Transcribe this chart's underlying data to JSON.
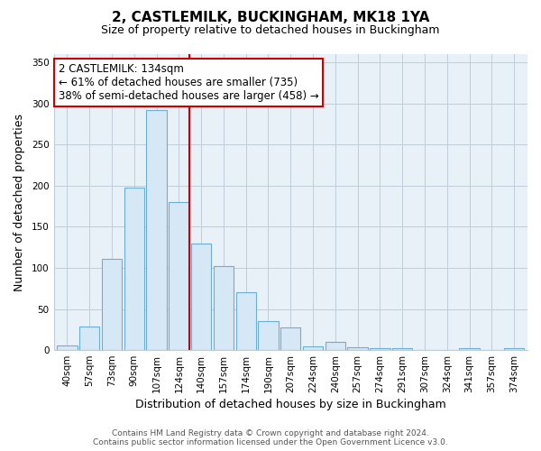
{
  "title": "2, CASTLEMILK, BUCKINGHAM, MK18 1YA",
  "subtitle": "Size of property relative to detached houses in Buckingham",
  "xlabel": "Distribution of detached houses by size in Buckingham",
  "ylabel": "Number of detached properties",
  "bar_labels": [
    "40sqm",
    "57sqm",
    "73sqm",
    "90sqm",
    "107sqm",
    "124sqm",
    "140sqm",
    "157sqm",
    "174sqm",
    "190sqm",
    "207sqm",
    "224sqm",
    "240sqm",
    "257sqm",
    "274sqm",
    "291sqm",
    "307sqm",
    "324sqm",
    "341sqm",
    "357sqm",
    "374sqm"
  ],
  "bar_values": [
    6,
    29,
    111,
    198,
    292,
    180,
    130,
    102,
    70,
    35,
    27,
    5,
    10,
    3,
    2,
    2,
    0,
    0,
    2,
    0,
    2
  ],
  "bar_color": "#d6e8f5",
  "bar_edge_color": "#6baed6",
  "vline_color": "#cc0000",
  "ylim": [
    0,
    360
  ],
  "yticks": [
    0,
    50,
    100,
    150,
    200,
    250,
    300,
    350
  ],
  "annotation_title": "2 CASTLEMILK: 134sqm",
  "annotation_line1": "← 61% of detached houses are smaller (735)",
  "annotation_line2": "38% of semi-detached houses are larger (458) →",
  "annotation_box_color": "#ffffff",
  "annotation_box_edge": "#cc0000",
  "footer_line1": "Contains HM Land Registry data © Crown copyright and database right 2024.",
  "footer_line2": "Contains public sector information licensed under the Open Government Licence v3.0.",
  "title_fontsize": 11,
  "subtitle_fontsize": 9,
  "axis_label_fontsize": 9,
  "tick_fontsize": 7.5,
  "annotation_fontsize": 8.5,
  "footer_fontsize": 6.5,
  "background_color": "#ffffff",
  "plot_bg_color": "#e8f0f8",
  "grid_color": "#c0ccd8"
}
